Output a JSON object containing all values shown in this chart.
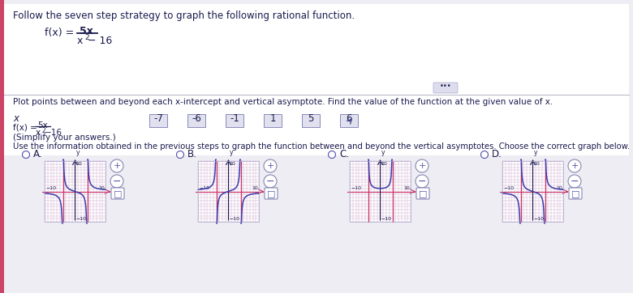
{
  "title": "Follow the seven step strategy to graph the following rational function.",
  "section2_text": "Plot points between and beyond each x-intercept and vertical asymptote. Find the value of the function at the given value of x.",
  "x_values": [
    "-7",
    "-6",
    "-1",
    "1",
    "5",
    "6"
  ],
  "simplify_note": "(Simplify your answers.)",
  "graph_instruction": "Use the information obtained in the previous steps to graph the function between and beyond the vertical asymptotes. Choose the correct graph below.",
  "options": [
    "A.",
    "B.",
    "C.",
    "D."
  ],
  "bg_color": "#eeedf3",
  "white_panel": "#ffffff",
  "text_color": "#1a1a4e",
  "grid_color_major": "#c8a0c8",
  "grid_color_minor": "#ddc8dd",
  "curve_color": "#3a3aaa",
  "asymptote_color": "#cc3366",
  "xaxis_color": "#cc3366",
  "radio_color": "#5050aa",
  "box_fill": "#e0e0ee",
  "box_edge": "#8888bb",
  "dots_btn_color": "#ddddee",
  "separator_color": "#bbbbcc"
}
